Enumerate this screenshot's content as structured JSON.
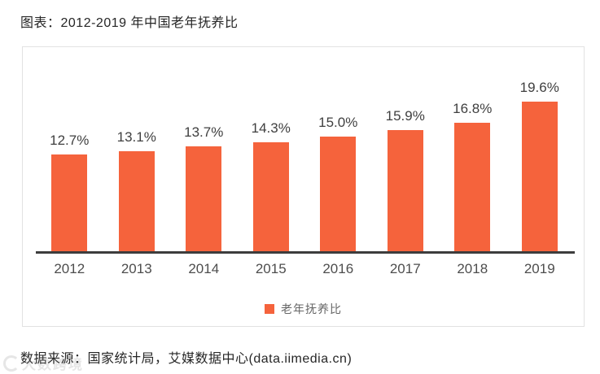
{
  "title": "图表：2012-2019 年中国老年抚养比",
  "source": "数据来源：国家统计局，艾媒数据中心(data.iimedia.cn)",
  "watermark": "大数跨境",
  "colors": {
    "bar": "#f5633c",
    "axis_line": "#3d3d3d",
    "frame_border": "#e2e2e2",
    "value_label": "#3f3f3f",
    "tick_label": "#4d4d4d",
    "legend_text": "#666666"
  },
  "chart_data": {
    "type": "bar",
    "title": "图表：2012-2019 年中国老年抚养比",
    "categories": [
      "2012",
      "2013",
      "2014",
      "2015",
      "2016",
      "2017",
      "2018",
      "2019"
    ],
    "values": [
      12.7,
      13.1,
      13.7,
      14.3,
      15.0,
      15.9,
      16.8,
      19.6
    ],
    "value_labels": [
      "12.7%",
      "13.1%",
      "13.7%",
      "14.3%",
      "15.0%",
      "15.9%",
      "16.8%",
      "19.6%"
    ],
    "legend": "老年抚养比",
    "legend_position": "bottom",
    "xlabel": "",
    "ylabel": "",
    "ylim": [
      0,
      22
    ],
    "grid": false,
    "bar_color": "#f5633c"
  }
}
